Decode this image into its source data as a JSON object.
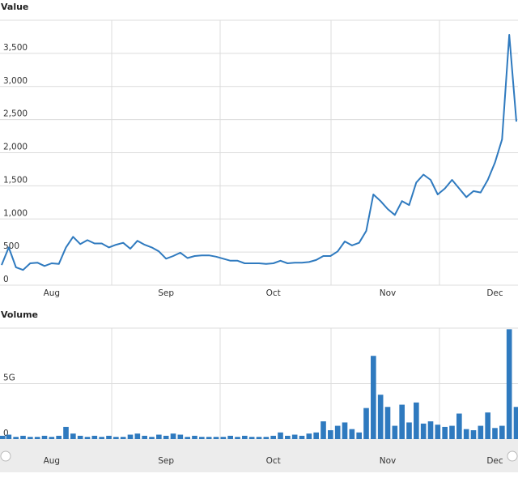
{
  "chart_data": [
    {
      "type": "line",
      "title": "Value",
      "color": "#2f7abf",
      "categories": [
        null,
        null,
        null,
        null,
        null,
        null,
        null,
        "Aug",
        null,
        null,
        null,
        null,
        null,
        null,
        null,
        null,
        null,
        null,
        null,
        null,
        null,
        null,
        null,
        "Sep",
        null,
        null,
        null,
        null,
        null,
        null,
        null,
        null,
        null,
        null,
        null,
        null,
        null,
        null,
        "Oct",
        null,
        null,
        null,
        null,
        null,
        null,
        null,
        null,
        null,
        null,
        null,
        null,
        null,
        null,
        null,
        "Nov",
        null,
        null,
        null,
        null,
        null,
        null,
        null,
        null,
        null,
        null,
        null,
        null,
        null,
        null,
        "Dec",
        null,
        null,
        null
      ],
      "values": [
        305,
        570,
        270,
        230,
        330,
        340,
        290,
        330,
        320,
        570,
        730,
        620,
        680,
        630,
        630,
        570,
        610,
        640,
        550,
        670,
        610,
        570,
        510,
        400,
        440,
        490,
        410,
        440,
        450,
        450,
        430,
        400,
        370,
        370,
        330,
        330,
        330,
        320,
        330,
        370,
        330,
        340,
        340,
        350,
        380,
        440,
        440,
        510,
        660,
        600,
        640,
        820,
        1370,
        1270,
        1150,
        1060,
        1270,
        1210,
        1550,
        1670,
        1590,
        1370,
        1460,
        1590,
        1460,
        1330,
        1420,
        1400,
        1590,
        1850,
        2200,
        3780,
        2470
      ],
      "ylim": [
        0,
        4000
      ],
      "yticks": [
        0,
        500,
        {
          "value": 1000,
          "label": "1,000"
        },
        {
          "value": 1500,
          "label": "1,500"
        },
        {
          "value": 2000,
          "label": "2,000"
        },
        {
          "value": 2500,
          "label": "2,500"
        },
        {
          "value": 3000,
          "label": "3,000"
        },
        {
          "value": 3500,
          "label": "3,500"
        }
      ],
      "grid": true
    },
    {
      "type": "bar",
      "title": "Volume",
      "color": "#2f7abf",
      "categories": [
        null,
        null,
        null,
        null,
        null,
        null,
        null,
        "Aug",
        null,
        null,
        null,
        null,
        null,
        null,
        null,
        null,
        null,
        null,
        null,
        null,
        null,
        null,
        null,
        "Sep",
        null,
        null,
        null,
        null,
        null,
        null,
        null,
        null,
        null,
        null,
        null,
        null,
        null,
        null,
        "Oct",
        null,
        null,
        null,
        null,
        null,
        null,
        null,
        null,
        null,
        null,
        null,
        null,
        null,
        null,
        null,
        "Nov",
        null,
        null,
        null,
        null,
        null,
        null,
        null,
        null,
        null,
        null,
        null,
        null,
        null,
        null,
        "Dec",
        null,
        null,
        null
      ],
      "values": [
        300000000,
        400000000,
        200000000,
        300000000,
        200000000,
        200000000,
        300000000,
        200000000,
        300000000,
        1100000000,
        500000000,
        300000000,
        200000000,
        300000000,
        200000000,
        300000000,
        200000000,
        200000000,
        400000000,
        500000000,
        300000000,
        200000000,
        400000000,
        300000000,
        500000000,
        400000000,
        200000000,
        300000000,
        200000000,
        200000000,
        200000000,
        200000000,
        300000000,
        200000000,
        300000000,
        200000000,
        200000000,
        200000000,
        300000000,
        600000000,
        300000000,
        400000000,
        300000000,
        500000000,
        600000000,
        1600000000,
        800000000,
        1200000000,
        1500000000,
        900000000,
        600000000,
        2800000000,
        7500000000,
        4000000000,
        2900000000,
        1200000000,
        3100000000,
        1500000000,
        3300000000,
        1400000000,
        1600000000,
        1300000000,
        1100000000,
        1200000000,
        2300000000,
        900000000,
        800000000,
        1200000000,
        2400000000,
        1000000000,
        1200000000,
        9900000000,
        2900000000
      ],
      "ylim": [
        0,
        10000000000
      ],
      "yticks": [
        {
          "value": 0,
          "label": "0"
        },
        {
          "value": 5000000000,
          "label": "5G"
        }
      ],
      "grid": true
    }
  ]
}
